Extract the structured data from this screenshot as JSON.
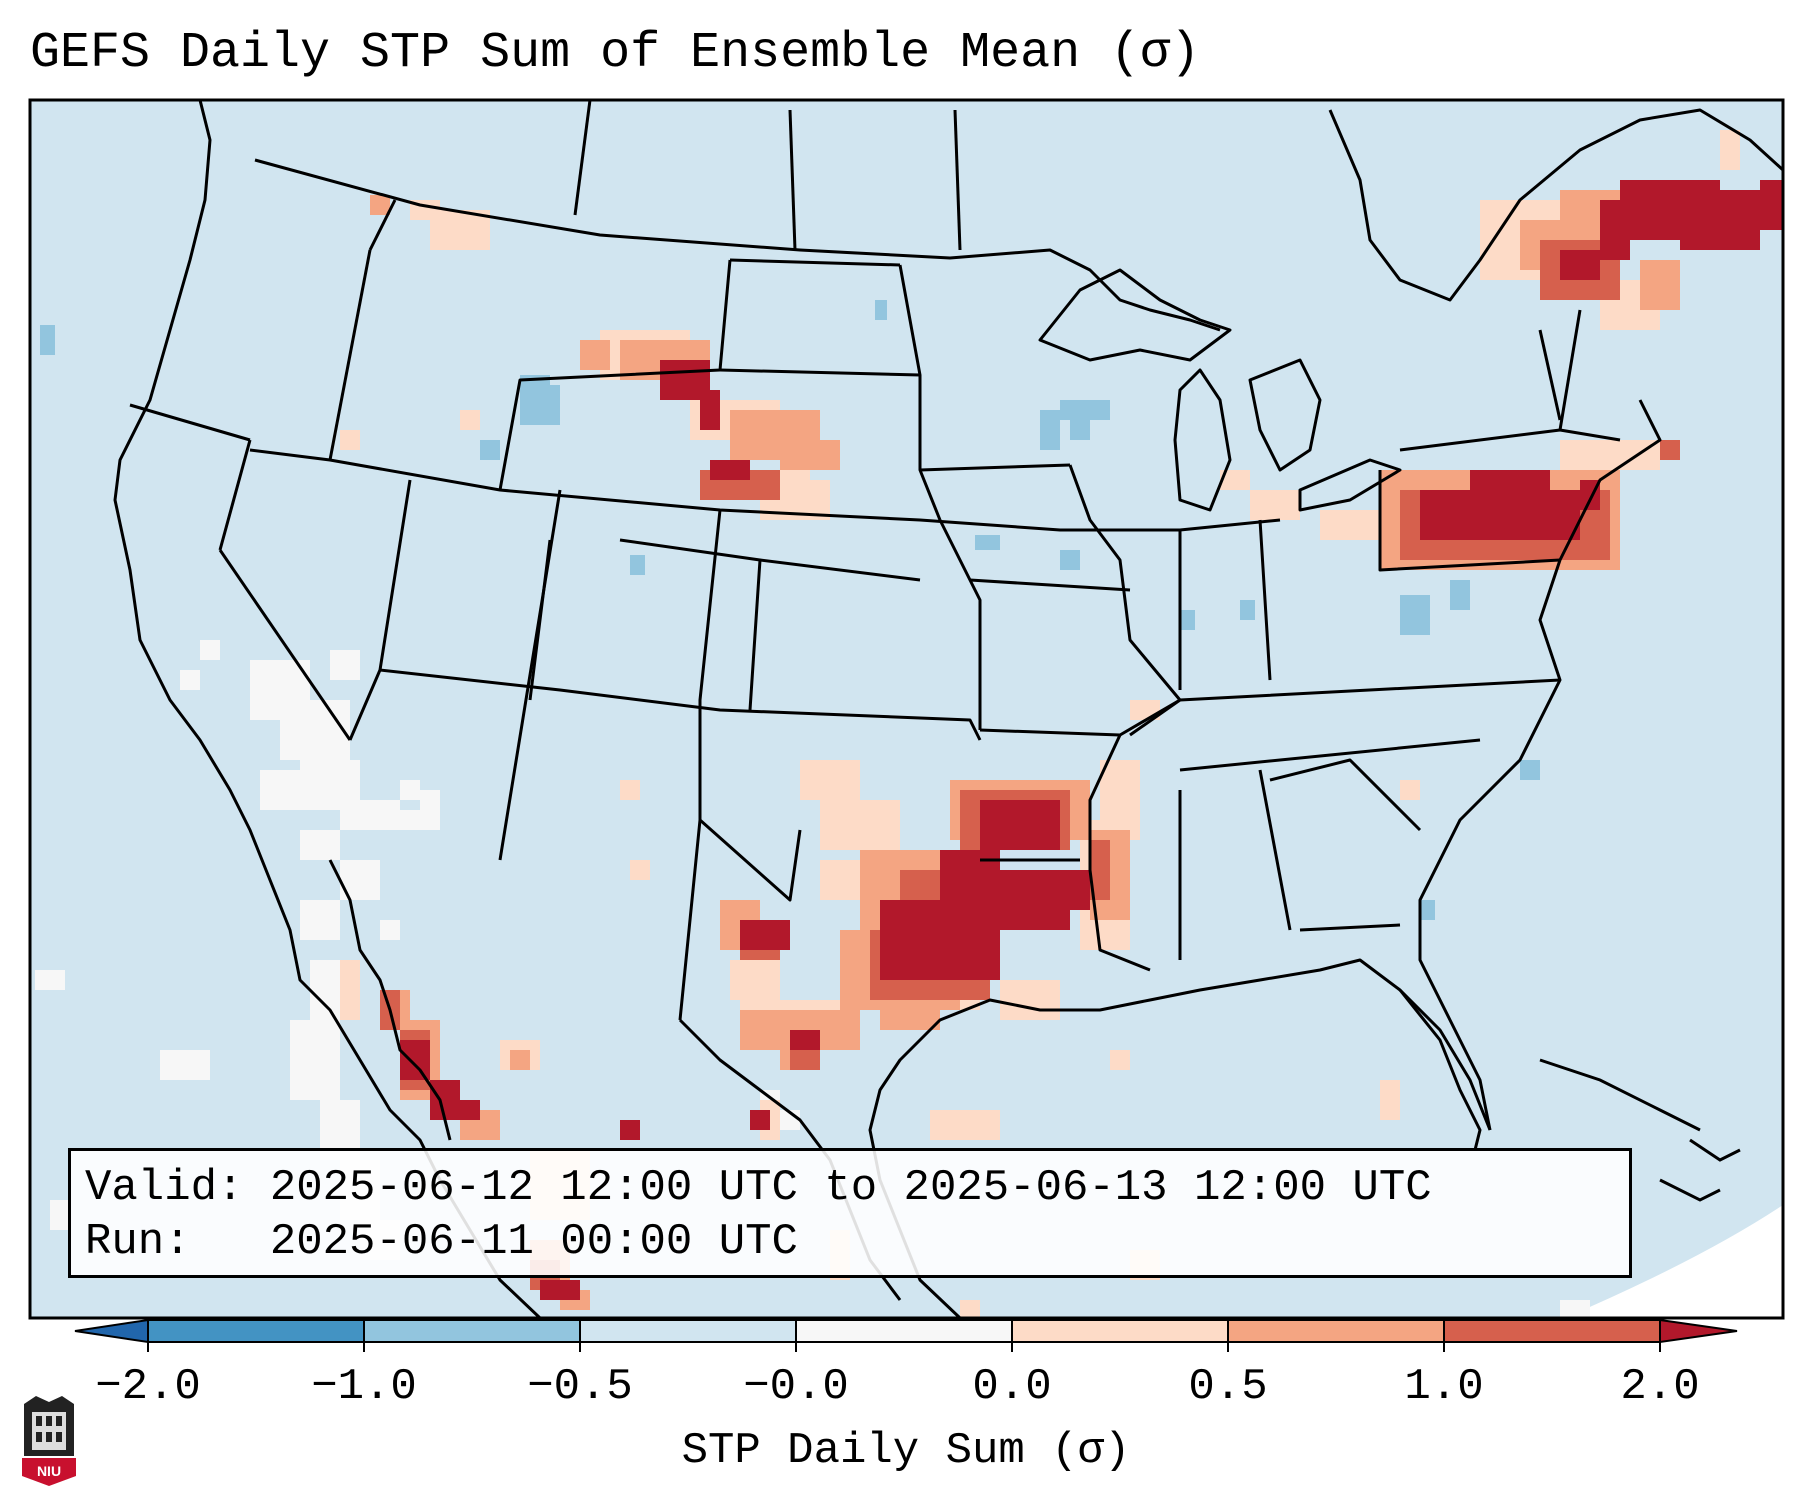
{
  "title": "GEFS Daily STP Sum of Ensemble Mean (σ)",
  "info": {
    "valid_label": "Valid:",
    "valid_value": "2025-06-12 12:00 UTC to 2025-06-13 12:00 UTC",
    "run_label": "Run:",
    "run_value": "2025-06-11 00:00 UTC"
  },
  "colorbar": {
    "label": "STP Daily Sum (σ)",
    "ticks": [
      "−2.0",
      "−1.0",
      "−0.5",
      "−0.0",
      "0.0",
      "0.5",
      "1.0",
      "2.0"
    ],
    "colors": [
      "#4393c3",
      "#92c5de",
      "#d1e5f0",
      "#f7f7f7",
      "#fddbc7",
      "#f4a582",
      "#d6604d",
      "#b2182b"
    ]
  },
  "map": {
    "background_color": "#d1e5f0",
    "outside_color": "#ffffff",
    "line_color": "#000000"
  },
  "logo": {
    "text": "NIU"
  }
}
